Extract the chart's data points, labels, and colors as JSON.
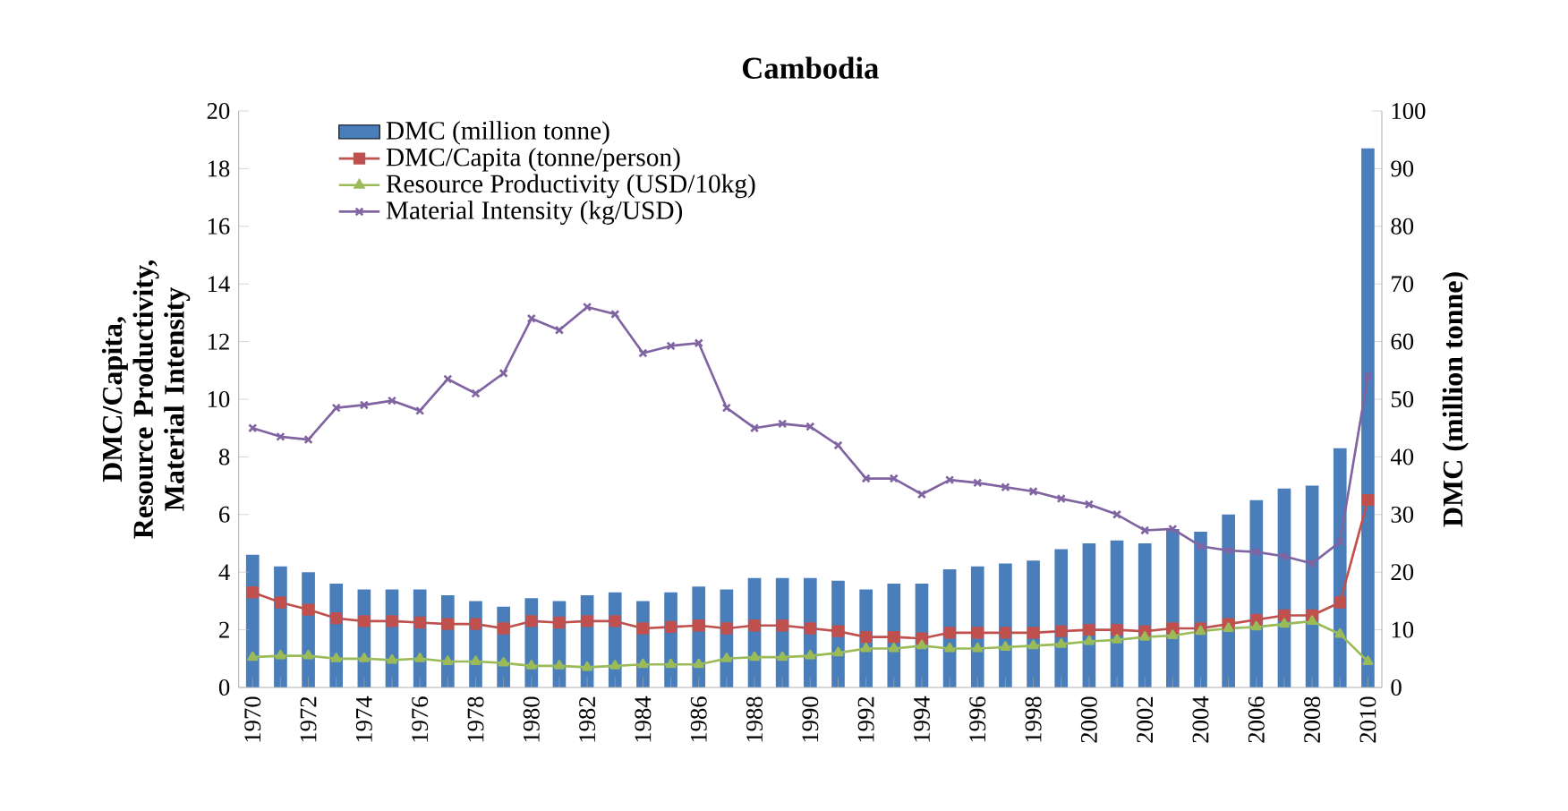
{
  "chart_data": {
    "type": "line",
    "title": "Cambodia",
    "categories": [
      "1970",
      null,
      "1972",
      null,
      "1974",
      null,
      "1976",
      null,
      "1978",
      null,
      "1980",
      null,
      "1982",
      null,
      "1984",
      null,
      "1986",
      null,
      "1988",
      null,
      "1990",
      null,
      "1992",
      null,
      "1994",
      null,
      "1996",
      null,
      "1998",
      null,
      "2000",
      null,
      "2002",
      null,
      "2004",
      null,
      "2006",
      null,
      "2008",
      null,
      "2010"
    ],
    "ylabel": "DMC/Capita, Resource Productivity, Material Intensity",
    "y2label": "DMC (million tonne)",
    "ylim": [
      0,
      20
    ],
    "yticks": [
      0,
      2,
      4,
      6,
      8,
      10,
      12,
      14,
      16,
      18,
      20
    ],
    "y2lim": [
      0,
      100
    ],
    "y2ticks": [
      0,
      10,
      20,
      30,
      40,
      50,
      60,
      70,
      80,
      90,
      100
    ],
    "legend": "top left",
    "grid": false,
    "line_style": "solid",
    "series": [
      {
        "name": "DMC (million tonne)",
        "type": "bar",
        "axis": "y2",
        "color": "#4a7ebb",
        "values": [
          23,
          21,
          20,
          18,
          17,
          17,
          17,
          16,
          15,
          14,
          15.5,
          15,
          16,
          16.5,
          15,
          16.5,
          17.5,
          17,
          19,
          19,
          19,
          18.5,
          17,
          18,
          18,
          20.5,
          21,
          21.5,
          22,
          24,
          25,
          25.5,
          25,
          27.5,
          27,
          30,
          32.5,
          34.5,
          35,
          41.5,
          93.5
        ]
      },
      {
        "name": "DMC/Capita (tonne/person)",
        "marker": "square",
        "color": "#c0504d",
        "values": [
          3.3,
          2.95,
          2.7,
          2.4,
          2.3,
          2.3,
          2.25,
          2.2,
          2.2,
          2.05,
          2.3,
          2.25,
          2.3,
          2.3,
          2.05,
          2.1,
          2.15,
          2.05,
          2.15,
          2.15,
          2.05,
          1.95,
          1.75,
          1.75,
          1.7,
          1.9,
          1.9,
          1.9,
          1.9,
          1.95,
          2.0,
          2.0,
          1.95,
          2.05,
          2.05,
          2.2,
          2.35,
          2.5,
          2.5,
          2.95,
          6.5
        ]
      },
      {
        "name": "Resource Productivity (USD/10kg)",
        "marker": "triangle",
        "color": "#9bbb59",
        "values": [
          1.05,
          1.1,
          1.1,
          1.0,
          1.0,
          0.95,
          1.0,
          0.9,
          0.9,
          0.85,
          0.75,
          0.75,
          0.7,
          0.75,
          0.8,
          0.8,
          0.8,
          1.0,
          1.05,
          1.05,
          1.1,
          1.2,
          1.35,
          1.35,
          1.45,
          1.35,
          1.35,
          1.4,
          1.45,
          1.5,
          1.6,
          1.65,
          1.75,
          1.8,
          1.95,
          2.05,
          2.1,
          2.2,
          2.3,
          1.85,
          0.9
        ]
      },
      {
        "name": "Material Intensity (kg/USD)",
        "marker": "cross",
        "color": "#8064a2",
        "values": [
          9.0,
          8.7,
          8.6,
          9.7,
          9.8,
          9.95,
          9.6,
          10.7,
          10.2,
          10.9,
          12.8,
          12.4,
          13.2,
          12.95,
          11.6,
          11.85,
          11.95,
          9.7,
          9.0,
          9.15,
          9.05,
          8.4,
          7.25,
          7.25,
          6.7,
          7.2,
          7.1,
          6.95,
          6.8,
          6.55,
          6.35,
          6.0,
          5.45,
          5.5,
          4.9,
          4.75,
          4.7,
          4.55,
          4.3,
          5.05,
          10.8
        ]
      }
    ]
  }
}
